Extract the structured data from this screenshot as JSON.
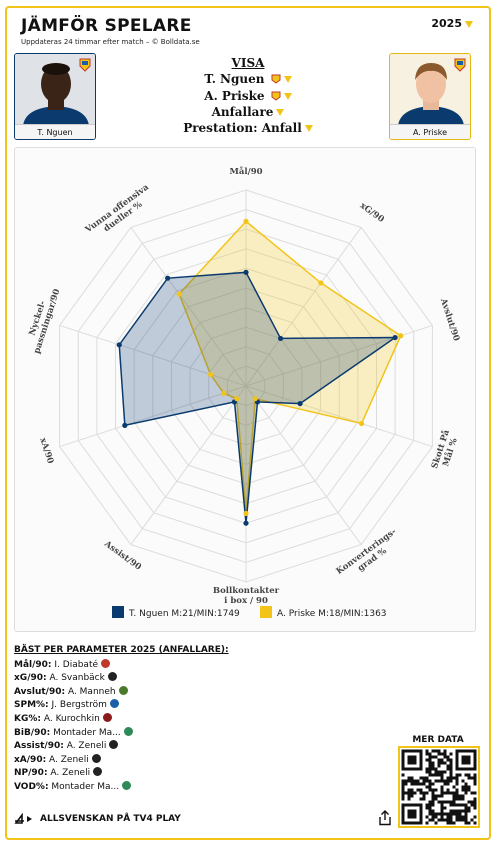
{
  "header": {
    "title": "JÄMFÖR SPELARE",
    "subtitle": "Uppdateras 24 timmar efter match – © Bolldata.se",
    "year": "2025"
  },
  "players": {
    "left": {
      "name": "T. Nguen",
      "color": "#0b3b6e"
    },
    "right": {
      "name": "A. Priske",
      "color": "#f2c419"
    }
  },
  "visa": {
    "heading": "VISA",
    "player1": "T. Nguen",
    "player2": "A. Priske",
    "position": "Anfallare",
    "prestation": "Prestation: Anfall"
  },
  "chart_data": {
    "type": "radar",
    "axes": [
      "Mål/90",
      "xG/90",
      "Avslut/90",
      "Skott På Mål %",
      "Konverterings-grad %",
      "Bollkontakter i box / 90",
      "Assist/90",
      "xA/90",
      "Nyckel-passningar/90",
      "Vunna offensiva dueller %"
    ],
    "axis_lines": [
      [
        "Mål/90"
      ],
      [
        "xG/90"
      ],
      [
        "Avslut/90"
      ],
      [
        "Skott På",
        "Mål %"
      ],
      [
        "Konverterings-",
        "grad %"
      ],
      [
        "Bollkontakter",
        "i box / 90"
      ],
      [
        "Assist/90"
      ],
      [
        "xA/90"
      ],
      [
        "Nyckel-",
        "passningar/90"
      ],
      [
        "Vunna offensiva",
        "dueller %"
      ]
    ],
    "rings": 10,
    "range": [
      0,
      10
    ],
    "series": [
      {
        "name": "T. Nguen M:21/MIN:1749",
        "color": "#0b3b6e",
        "values": [
          5.8,
          3.0,
          8.0,
          2.9,
          1.0,
          7.0,
          1.0,
          6.5,
          6.8,
          6.8
        ]
      },
      {
        "name": "A. Priske M:18/MIN:1363",
        "color": "#f2c419",
        "values": [
          8.4,
          6.5,
          8.3,
          6.2,
          0.8,
          6.5,
          0.8,
          1.2,
          1.9,
          5.8
        ]
      }
    ]
  },
  "best": {
    "heading": "BÄST PER PARAMETER 2025 (ANFALLARE):",
    "rows": [
      {
        "param": "Mål/90",
        "player": "I. Diabaté",
        "club_color": "#c0392b"
      },
      {
        "param": "xG/90",
        "player": "A. Svanbäck",
        "club_color": "#222222"
      },
      {
        "param": "Avslut/90",
        "player": "A. Manneh",
        "club_color": "#4a7a2a"
      },
      {
        "param": "SPM%",
        "player": "J. Bergström",
        "club_color": "#1a5fa8"
      },
      {
        "param": "KG%",
        "player": "A. Kurochkin",
        "club_color": "#8b1a1a"
      },
      {
        "param": "BiB/90",
        "player": "Montader Ma...",
        "club_color": "#2e8b57"
      },
      {
        "param": "Assist/90",
        "player": "A. Zeneli",
        "club_color": "#222222"
      },
      {
        "param": "xA/90",
        "player": "A. Zeneli",
        "club_color": "#222222"
      },
      {
        "param": "NP/90",
        "player": "A. Zeneli",
        "club_color": "#222222"
      },
      {
        "param": "VOD%",
        "player": "Montader Ma...",
        "club_color": "#2e8b57"
      }
    ]
  },
  "more": {
    "label": "MER DATA"
  },
  "footer": {
    "label": "ALLSVENSKAN PÅ TV4 PLAY"
  }
}
